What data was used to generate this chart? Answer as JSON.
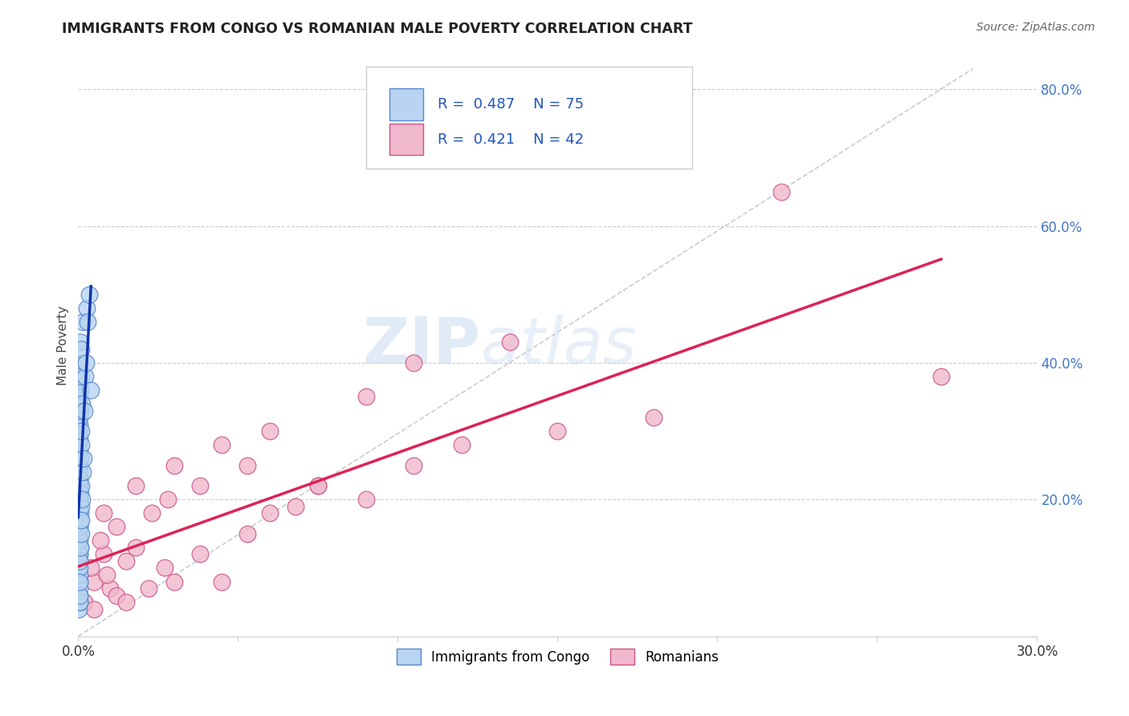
{
  "title": "IMMIGRANTS FROM CONGO VS ROMANIAN MALE POVERTY CORRELATION CHART",
  "source": "Source: ZipAtlas.com",
  "ylabel": "Male Poverty",
  "xlim": [
    0.0,
    0.3
  ],
  "ylim": [
    0.0,
    0.85
  ],
  "xticks": [
    0.0,
    0.05,
    0.1,
    0.15,
    0.2,
    0.25,
    0.3
  ],
  "xticklabels": [
    "0.0%",
    "",
    "",
    "",
    "",
    "",
    "30.0%"
  ],
  "yticks": [
    0.0,
    0.2,
    0.4,
    0.6,
    0.8
  ],
  "yticklabels": [
    "",
    "20.0%",
    "40.0%",
    "60.0%",
    "80.0%"
  ],
  "grid_color": "#cccccc",
  "background_color": "#ffffff",
  "watermark_zip": "ZIP",
  "watermark_atlas": "atlas",
  "legend_r1": "0.487",
  "legend_n1": "75",
  "legend_r2": "0.421",
  "legend_n2": "42",
  "series1_label": "Immigrants from Congo",
  "series2_label": "Romanians",
  "series1_color": "#b8d4f0",
  "series1_edge": "#5588cc",
  "series2_color": "#f0b8cc",
  "series2_edge": "#cc5588",
  "trendline1_color": "#1133aa",
  "trendline2_color": "#dd2255",
  "refline_color": "#bbbbbb",
  "congo_x": [
    0.0002,
    0.0003,
    0.0002,
    0.0004,
    0.0003,
    0.0002,
    0.0003,
    0.0004,
    0.0005,
    0.0003,
    0.0004,
    0.0002,
    0.0003,
    0.0004,
    0.0002,
    0.0005,
    0.0003,
    0.0004,
    0.0006,
    0.0003,
    0.0004,
    0.0002,
    0.0003,
    0.0005,
    0.0004,
    0.0003,
    0.0002,
    0.0004,
    0.0003,
    0.0005,
    0.0006,
    0.0004,
    0.0003,
    0.0002,
    0.0007,
    0.0005,
    0.0004,
    0.0003,
    0.0002,
    0.0006,
    0.0008,
    0.0004,
    0.0005,
    0.0003,
    0.0002,
    0.0009,
    0.0005,
    0.0004,
    0.0003,
    0.0007,
    0.001,
    0.0006,
    0.0005,
    0.0004,
    0.0008,
    0.0011,
    0.0009,
    0.0007,
    0.0005,
    0.0006,
    0.0013,
    0.001,
    0.0008,
    0.0006,
    0.0016,
    0.0012,
    0.0009,
    0.002,
    0.0014,
    0.0022,
    0.0028,
    0.0025,
    0.0034,
    0.003,
    0.004
  ],
  "congo_y": [
    0.04,
    0.06,
    0.1,
    0.05,
    0.08,
    0.12,
    0.07,
    0.05,
    0.09,
    0.11,
    0.12,
    0.14,
    0.16,
    0.06,
    0.18,
    0.1,
    0.2,
    0.08,
    0.13,
    0.23,
    0.15,
    0.17,
    0.19,
    0.12,
    0.21,
    0.25,
    0.28,
    0.11,
    0.14,
    0.16,
    0.18,
    0.22,
    0.26,
    0.3,
    0.13,
    0.2,
    0.24,
    0.27,
    0.33,
    0.17,
    0.19,
    0.29,
    0.23,
    0.36,
    0.36,
    0.15,
    0.31,
    0.34,
    0.38,
    0.21,
    0.17,
    0.26,
    0.32,
    0.35,
    0.22,
    0.2,
    0.28,
    0.33,
    0.4,
    0.36,
    0.24,
    0.3,
    0.38,
    0.43,
    0.26,
    0.34,
    0.42,
    0.33,
    0.46,
    0.38,
    0.48,
    0.4,
    0.5,
    0.46,
    0.36
  ],
  "romanian_x": [
    0.002,
    0.005,
    0.008,
    0.004,
    0.01,
    0.007,
    0.009,
    0.012,
    0.015,
    0.005,
    0.018,
    0.008,
    0.022,
    0.012,
    0.027,
    0.015,
    0.03,
    0.018,
    0.038,
    0.023,
    0.045,
    0.028,
    0.053,
    0.03,
    0.06,
    0.038,
    0.068,
    0.045,
    0.075,
    0.053,
    0.09,
    0.06,
    0.105,
    0.075,
    0.12,
    0.09,
    0.15,
    0.105,
    0.18,
    0.135,
    0.22,
    0.27
  ],
  "romanian_y": [
    0.05,
    0.08,
    0.12,
    0.1,
    0.07,
    0.14,
    0.09,
    0.06,
    0.11,
    0.04,
    0.13,
    0.18,
    0.07,
    0.16,
    0.1,
    0.05,
    0.08,
    0.22,
    0.12,
    0.18,
    0.08,
    0.2,
    0.15,
    0.25,
    0.18,
    0.22,
    0.19,
    0.28,
    0.22,
    0.25,
    0.2,
    0.3,
    0.25,
    0.22,
    0.28,
    0.35,
    0.3,
    0.4,
    0.32,
    0.43,
    0.65,
    0.38
  ],
  "trendline1_x": [
    0.0,
    0.004
  ],
  "trendline2_x": [
    0.0,
    0.27
  ]
}
